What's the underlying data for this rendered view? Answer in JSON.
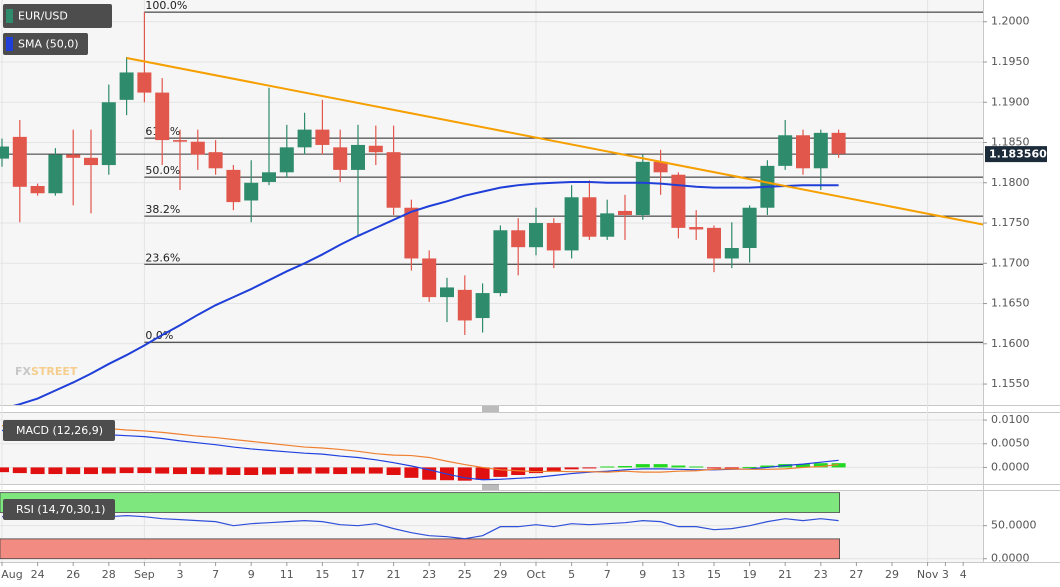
{
  "chart_data": [
    {
      "type": "candlestick",
      "categories": [
        "Aug",
        null,
        "24",
        null,
        "26",
        null,
        "28",
        null,
        "Sep",
        null,
        "3",
        null,
        "7",
        null,
        "9",
        null,
        "11",
        null,
        "15",
        null,
        "17",
        null,
        "21",
        null,
        "23",
        null,
        "25",
        null,
        "29",
        null,
        "Oct",
        null,
        "5",
        null,
        "7",
        null,
        "9",
        null,
        "13",
        null,
        "15",
        null,
        "19",
        null,
        "21",
        null,
        "23",
        null,
        "27",
        null,
        "29",
        null,
        "Nov",
        "3",
        "4"
      ],
      "series": [
        {
          "name": "EUR/USD",
          "up_color": "#2e8b6b",
          "down_color": "#e2574c",
          "open": [
            1.183,
            1.1857,
            1.1796,
            1.1787,
            1.1835,
            1.1831,
            1.1822,
            1.1903,
            1.1937,
            1.1912,
            1.1853,
            1.1851,
            1.1838,
            1.1816,
            1.1778,
            1.1801,
            1.1813,
            1.1844,
            1.1866,
            1.1844,
            1.1816,
            1.1846,
            1.1838,
            1.1769,
            1.1706,
            1.1658,
            1.1667,
            1.1632,
            1.1663,
            1.1741,
            1.172,
            1.175,
            1.1716,
            1.1782,
            1.1733,
            1.1765,
            1.176,
            1.1826,
            1.181,
            1.1745,
            1.1744,
            1.1706,
            1.1719,
            1.1769,
            1.1821,
            1.1859,
            1.1818,
            1.1862,
            null,
            null,
            null,
            null,
            null,
            null,
            null
          ],
          "high": [
            1.1855,
            1.1878,
            1.1799,
            1.1843,
            1.1866,
            1.1866,
            1.1922,
            1.1956,
            1.2012,
            1.193,
            1.1866,
            1.1866,
            1.1853,
            1.1822,
            1.1828,
            1.1918,
            1.1872,
            1.1887,
            1.1903,
            1.1866,
            1.1872,
            1.1871,
            1.1871,
            1.1779,
            1.1716,
            1.1682,
            1.1685,
            1.1675,
            1.1747,
            1.1756,
            1.1769,
            1.1756,
            1.1797,
            1.1803,
            1.1779,
            1.1785,
            1.1835,
            1.1841,
            1.1813,
            1.1766,
            1.1747,
            1.1751,
            1.1772,
            1.1828,
            1.1878,
            1.1866,
            1.1866,
            1.1866,
            null,
            null,
            null,
            null,
            null,
            null,
            null
          ],
          "low": [
            1.182,
            1.1751,
            1.1784,
            1.1784,
            1.1772,
            1.1762,
            1.181,
            1.1884,
            1.19,
            1.1822,
            1.1791,
            1.1816,
            1.181,
            1.1766,
            1.1751,
            1.1797,
            1.1806,
            1.1835,
            1.1835,
            1.1801,
            1.1735,
            1.1822,
            1.176,
            1.1691,
            1.1652,
            1.1627,
            1.1611,
            1.1614,
            1.1659,
            1.1685,
            1.171,
            1.1694,
            1.1706,
            1.1729,
            1.1729,
            1.1729,
            1.1754,
            1.1785,
            1.1731,
            1.1729,
            1.1689,
            1.1694,
            1.1701,
            1.176,
            1.1816,
            1.181,
            1.1791,
            1.1831,
            null,
            null,
            null,
            null,
            null,
            null,
            null
          ],
          "close": [
            1.1845,
            1.1795,
            1.1787,
            1.1835,
            1.1831,
            1.1822,
            1.19,
            1.1937,
            1.1912,
            1.1853,
            1.1851,
            1.1835,
            1.1818,
            1.1776,
            1.18,
            1.1813,
            1.1844,
            1.1866,
            1.1847,
            1.1816,
            1.1847,
            1.1838,
            1.1769,
            1.1706,
            1.1658,
            1.167,
            1.1629,
            1.1663,
            1.1741,
            1.172,
            1.175,
            1.1716,
            1.1782,
            1.1733,
            1.1762,
            1.176,
            1.1826,
            1.1813,
            1.1744,
            1.1742,
            1.1706,
            1.1719,
            1.1769,
            1.1821,
            1.1859,
            1.1818,
            1.1862,
            1.1836,
            null,
            null,
            null,
            null,
            null,
            null,
            null
          ]
        }
      ],
      "sma": {
        "name": "SMA (50,0)",
        "color": "#1f3fd8",
        "values": [
          1.1519,
          1.1525,
          1.1532,
          1.1542,
          1.1552,
          1.1563,
          1.1575,
          1.1586,
          1.1598,
          1.1611,
          1.1623,
          1.1636,
          1.1648,
          1.1658,
          1.1668,
          1.1679,
          1.169,
          1.17,
          1.1711,
          1.1723,
          1.1734,
          1.1744,
          1.1754,
          1.1764,
          1.1771,
          1.1777,
          1.1784,
          1.1789,
          1.1794,
          1.1797,
          1.1799,
          1.18,
          1.1801,
          1.1801,
          1.18,
          1.18,
          1.18,
          1.1799,
          1.1797,
          1.1795,
          1.1794,
          1.1794,
          1.1794,
          1.1795,
          1.1796,
          1.1797,
          1.1797,
          1.1797,
          null,
          null,
          null,
          null,
          null,
          null,
          null
        ]
      },
      "trendline": {
        "color": "#f5a000",
        "x": [
          7,
          54
        ],
        "values": [
          1.1955,
          1.1753
        ]
      },
      "fib_color": "#222222",
      "fib_levels": [
        {
          "label": "100.0%",
          "value": 1.2012
        },
        {
          "label": "61.8%",
          "value": 1.18554
        },
        {
          "label": "50.0%",
          "value": 1.1807
        },
        {
          "label": "38.2%",
          "value": 1.17586
        },
        {
          "label": "23.6%",
          "value": 1.16988
        },
        {
          "label": "0.0%",
          "value": 1.1602
        }
      ],
      "last_price": {
        "value": 1.18356,
        "label": "1.183560"
      },
      "watermark": [
        "FX",
        "STREET"
      ],
      "ylim": [
        1.1524,
        1.2027
      ],
      "yticks": [
        {
          "value": 1.2,
          "label": "1.2000"
        },
        {
          "value": 1.195,
          "label": "1.1950"
        },
        {
          "value": 1.19,
          "label": "1.1900"
        },
        {
          "value": 1.185,
          "label": "1.1850"
        },
        {
          "value": 1.18,
          "label": "1.1800"
        },
        {
          "value": 1.175,
          "label": "1.1750"
        },
        {
          "value": 1.17,
          "label": "1.1700"
        },
        {
          "value": 1.165,
          "label": "1.1650"
        },
        {
          "value": 1.16,
          "label": "1.1600"
        },
        {
          "value": 1.155,
          "label": "1.1550"
        }
      ],
      "grid": true
    },
    {
      "type": "macd",
      "label": "MACD (12,26,9)",
      "histogram": {
        "up_color": "#22d822",
        "down_color": "#e01010",
        "values": [
          -0.001,
          -0.0012,
          -0.0014,
          -0.0014,
          -0.0014,
          -0.0014,
          -0.0013,
          -0.0012,
          -0.0012,
          -0.0013,
          -0.0014,
          -0.0014,
          -0.0015,
          -0.0016,
          -0.0016,
          -0.0015,
          -0.0014,
          -0.0013,
          -0.0013,
          -0.0014,
          -0.0013,
          -0.0013,
          -0.0016,
          -0.0022,
          -0.0026,
          -0.0027,
          -0.0028,
          -0.0026,
          -0.002,
          -0.0016,
          -0.0012,
          -0.0009,
          -0.0004,
          -0.0001,
          0.0002,
          0.0003,
          0.0007,
          0.0007,
          0.0004,
          0.0002,
          -0.0001,
          -0.0001,
          0.0001,
          0.0004,
          0.0007,
          0.0007,
          0.0009,
          0.0009
        ]
      },
      "lines": [
        {
          "color": "#2040e0",
          "values": [
            0.0078,
            0.0077,
            0.0076,
            0.0074,
            0.0073,
            0.0071,
            0.0069,
            0.0067,
            0.0065,
            0.0061,
            0.0056,
            0.0052,
            0.0048,
            0.0043,
            0.0039,
            0.0036,
            0.0033,
            0.003,
            0.0028,
            0.0024,
            0.0021,
            0.0016,
            0.001,
            0.0003,
            -0.0005,
            -0.0014,
            -0.0022,
            -0.0026,
            -0.0025,
            -0.0023,
            -0.0021,
            -0.0017,
            -0.0013,
            -0.001,
            -0.0008,
            -0.0005,
            -0.0003,
            -0.0003,
            -0.0004,
            -0.0005,
            -0.0005,
            -0.0004,
            -0.0003,
            0.0,
            0.0004,
            0.0007,
            0.0011,
            0.0015
          ]
        },
        {
          "color": "#f08030",
          "values": [
            0.0088,
            0.0089,
            0.009,
            0.0088,
            0.0087,
            0.0085,
            0.0082,
            0.0079,
            0.0077,
            0.0074,
            0.007,
            0.0066,
            0.0063,
            0.0059,
            0.0055,
            0.0051,
            0.0047,
            0.0043,
            0.0041,
            0.0038,
            0.0034,
            0.0029,
            0.0026,
            0.0025,
            0.0021,
            0.0013,
            0.0006,
            0.0,
            -0.0005,
            -0.0007,
            -0.0009,
            -0.0008,
            -0.0009,
            -0.0009,
            -0.001,
            -0.0008,
            -0.001,
            -0.001,
            -0.0008,
            -0.0007,
            -0.0004,
            -0.0003,
            -0.0004,
            -0.0004,
            -0.0003,
            0.0,
            0.0002,
            0.0006
          ]
        }
      ],
      "ylim": [
        -0.0035,
        0.0117
      ],
      "yticks": [
        {
          "value": 0.01,
          "label": "0.0100"
        },
        {
          "value": 0.005,
          "label": "0.0050"
        },
        {
          "value": 0,
          "label": "0.0000"
        }
      ],
      "grid": true
    },
    {
      "type": "line",
      "label": "RSI (14,70,30,1)",
      "bands": [
        {
          "from": 70,
          "to": 100,
          "color": "#7ee87e"
        },
        {
          "from": 0,
          "to": 30,
          "color": "#f28b82"
        }
      ],
      "series": [
        {
          "color": "#3050d8",
          "values": [
            63.6,
            62.1,
            60.6,
            62.1,
            60.6,
            62.1,
            63.6,
            65.2,
            63.6,
            60.6,
            59.1,
            57.6,
            56.1,
            50,
            53,
            54.5,
            56.1,
            57.6,
            56.1,
            51.5,
            50,
            53,
            45.5,
            39.4,
            34.8,
            33.3,
            30.3,
            34.8,
            48.5,
            48.5,
            51.5,
            48.5,
            53,
            51.5,
            53,
            54.5,
            57.6,
            56.1,
            48.5,
            48.5,
            43.9,
            45.5,
            50,
            56.1,
            60.6,
            57.6,
            60.6,
            57.6
          ]
        }
      ],
      "ylim": [
        -5,
        104
      ],
      "yticks": [
        {
          "value": 50,
          "label": "50.0000"
        },
        {
          "value": 0,
          "label": "0.0000"
        }
      ],
      "grid": true
    }
  ]
}
